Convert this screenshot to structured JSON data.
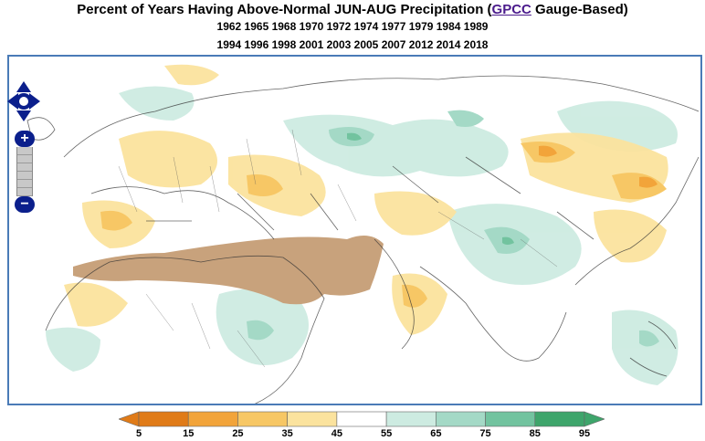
{
  "title": {
    "prefix": "Percent of Years Having Above-Normal JUN-AUG Precipitation (",
    "link": "GPCC",
    "suffix": " Gauge-Based)"
  },
  "years_line1": "1962 1965 1968 1970 1972 1974 1977 1979 1984 1989",
  "years_line2": "1994 1996 1998 2001 2003 2005 2007 2012 2014 2018",
  "colors": {
    "bin_5_15": "#e07b18",
    "bin_15_25": "#f2a43a",
    "bin_25_35": "#f7c765",
    "bin_35_45": "#fbe39e",
    "bin_45_55": "#ffffff",
    "bin_55_65": "#cdebe1",
    "bin_65_75": "#a4d9c6",
    "bin_75_85": "#72c39f",
    "bin_85_95": "#3ea56b",
    "dry_region": "#c8a27c",
    "frame": "#4a7bb7",
    "controls": "#0b1f8c"
  },
  "legend": {
    "ticks": [
      "5",
      "15",
      "25",
      "35",
      "45",
      "55",
      "65",
      "75",
      "85",
      "95"
    ]
  },
  "controls": {
    "zoom_in": "+",
    "zoom_out": "−"
  },
  "icons": [
    "pan-arrows-icon",
    "zoom-in-icon",
    "zoom-out-icon"
  ]
}
